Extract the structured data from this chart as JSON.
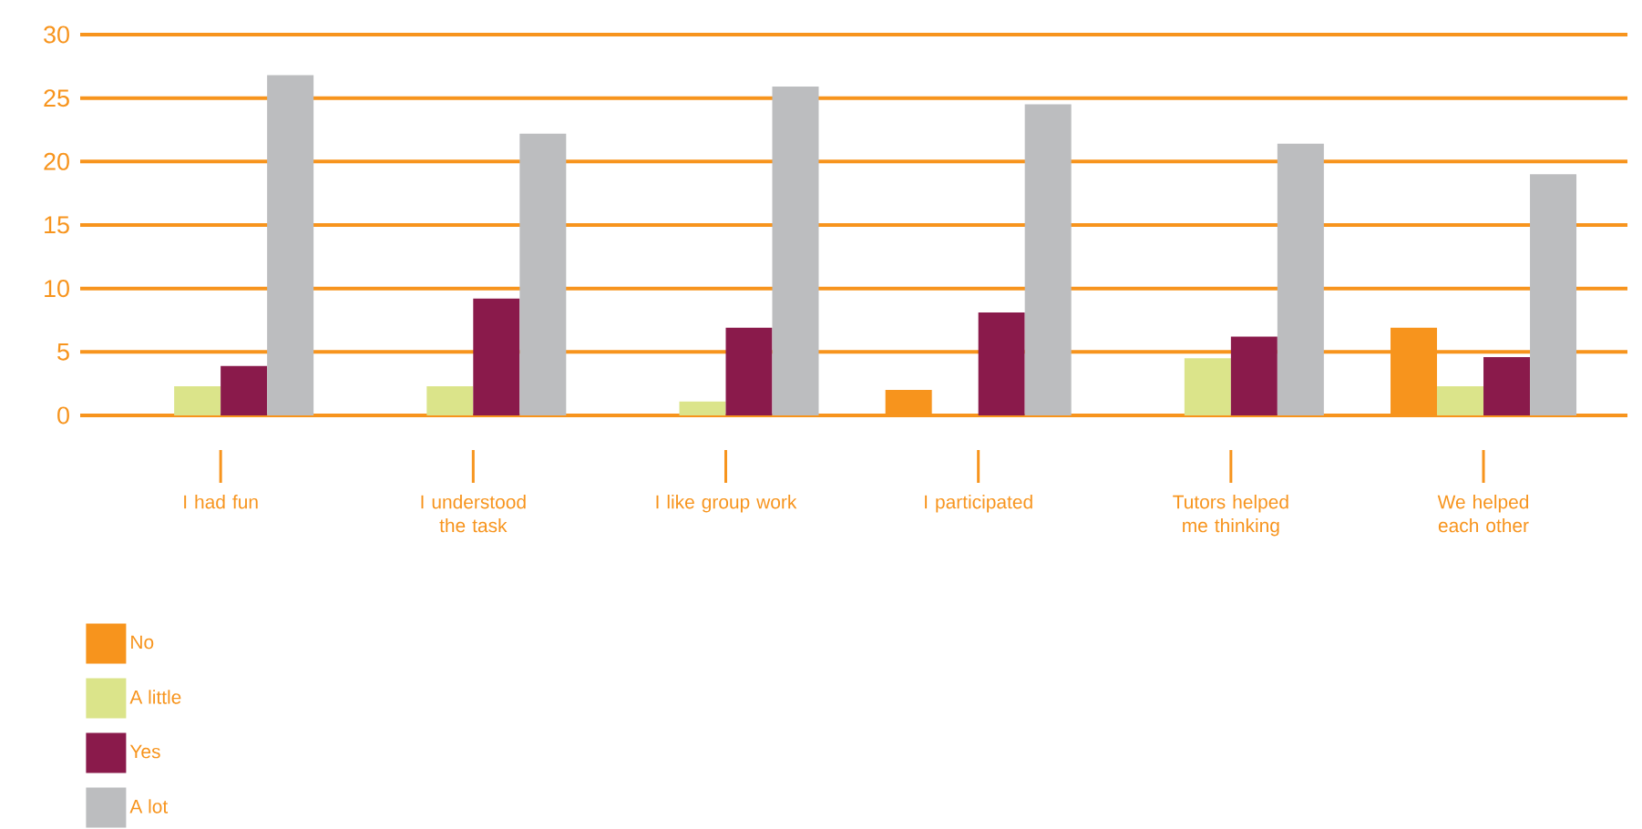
{
  "chart_data": {
    "type": "bar",
    "categories": [
      "I had fun",
      "I understood the task",
      "I like group work",
      "I participated",
      "Tutors helped me thinking",
      "We helped each other"
    ],
    "series": [
      {
        "name": "No",
        "color": "#f7941d",
        "values": [
          0,
          0,
          0,
          2,
          0,
          6.9
        ]
      },
      {
        "name": "A little",
        "color": "#dbe48a",
        "values": [
          2.3,
          2.3,
          1.1,
          0,
          4.5,
          2.3
        ]
      },
      {
        "name": "Yes",
        "color": "#8a1a4b",
        "values": [
          3.9,
          9.2,
          6.9,
          8.1,
          6.2,
          4.6
        ]
      },
      {
        "name": "A lot",
        "color": "#bcbdbf",
        "values": [
          26.8,
          22.2,
          25.9,
          24.5,
          21.4,
          19.0
        ]
      }
    ],
    "ylim": [
      0,
      30
    ],
    "yticks": [
      0,
      5,
      10,
      15,
      20,
      25,
      30
    ],
    "grid": "y",
    "legend": "bottom left"
  }
}
